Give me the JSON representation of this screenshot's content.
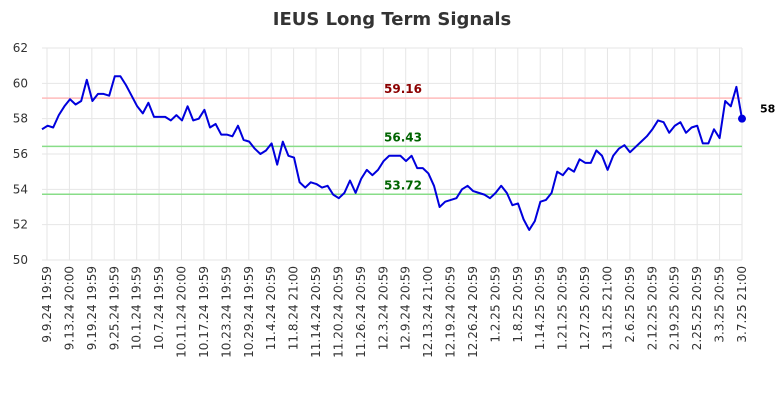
{
  "chart_data": {
    "type": "line",
    "title": "IEUS Long Term Signals",
    "xlabel": "",
    "ylabel": "",
    "ylim": [
      50,
      62
    ],
    "yticks": [
      50,
      52,
      54,
      56,
      58,
      60,
      62
    ],
    "x_tick_labels": [
      "9.9.24 19:59",
      "9.13.24 20:00",
      "9.19.24 19:59",
      "9.25.24 19:59",
      "10.1.24 19:59",
      "10.7.24 19:59",
      "10.11.24 20:00",
      "10.17.24 19:59",
      "10.23.24 19:59",
      "10.29.24 19:59",
      "11.4.24 20:59",
      "11.8.24 21:00",
      "11.14.24 20:59",
      "11.20.24 20:59",
      "11.26.24 20:59",
      "12.3.24 20:59",
      "12.9.24 20:59",
      "12.13.24 21:00",
      "12.19.24 20:59",
      "12.26.24 20:59",
      "1.2.25 20:59",
      "1.8.25 20:59",
      "1.14.25 20:59",
      "1.21.25 20:59",
      "1.27.25 20:59",
      "1.31.25 21:00",
      "2.6.25 20:59",
      "2.12.25 20:59",
      "2.19.25 20:59",
      "2.25.25 20:59",
      "3.3.25 20:59",
      "3.7.25 21:00"
    ],
    "grid": true,
    "line_color": "#0000dd",
    "signals": [
      {
        "value": 59.16,
        "label": "59.16",
        "line_color": "#ffbbbb",
        "text_color": "#8b0000"
      },
      {
        "value": 56.43,
        "label": "56.43",
        "line_color": "#88dd88",
        "text_color": "#006400"
      },
      {
        "value": 53.72,
        "label": "53.72",
        "line_color": "#88dd88",
        "text_color": "#006400"
      }
    ],
    "last_label": "58",
    "series": [
      {
        "values": [
          57.4,
          57.6,
          57.5,
          58.2,
          58.7,
          59.1,
          58.8,
          59.0,
          60.2,
          59.0,
          59.4,
          59.4,
          59.3,
          60.4,
          60.4,
          59.9,
          59.3,
          58.7,
          58.3,
          58.9,
          58.1,
          58.1,
          58.1,
          57.9,
          58.2,
          57.9,
          58.7,
          57.9,
          58.0,
          58.5,
          57.5,
          57.7,
          57.1,
          57.1,
          57.0,
          57.6,
          56.8,
          56.7,
          56.3,
          56.0,
          56.2,
          56.6,
          55.4,
          56.7,
          55.9,
          55.8,
          54.4,
          54.1,
          54.4,
          54.3,
          54.1,
          54.2,
          53.7,
          53.5,
          53.8,
          54.5,
          53.8,
          54.6,
          55.1,
          54.8,
          55.1,
          55.6,
          55.9,
          55.9,
          55.9,
          55.6,
          55.9,
          55.2,
          55.2,
          54.9,
          54.2,
          53.0,
          53.3,
          53.4,
          53.5,
          54.0,
          54.2,
          53.9,
          53.8,
          53.7,
          53.5,
          53.8,
          54.2,
          53.8,
          53.1,
          53.2,
          52.3,
          51.7,
          52.2,
          53.3,
          53.4,
          53.8,
          55.0,
          54.8,
          55.2,
          55.0,
          55.7,
          55.5,
          55.5,
          56.2,
          55.9,
          55.1,
          55.9,
          56.3,
          56.5,
          56.1,
          56.4,
          56.7,
          57.0,
          57.4,
          57.9,
          57.8,
          57.2,
          57.6,
          57.8,
          57.2,
          57.5,
          57.6,
          56.6,
          56.6,
          57.4,
          56.9,
          59.0,
          58.7,
          59.8,
          58.0
        ]
      }
    ]
  }
}
